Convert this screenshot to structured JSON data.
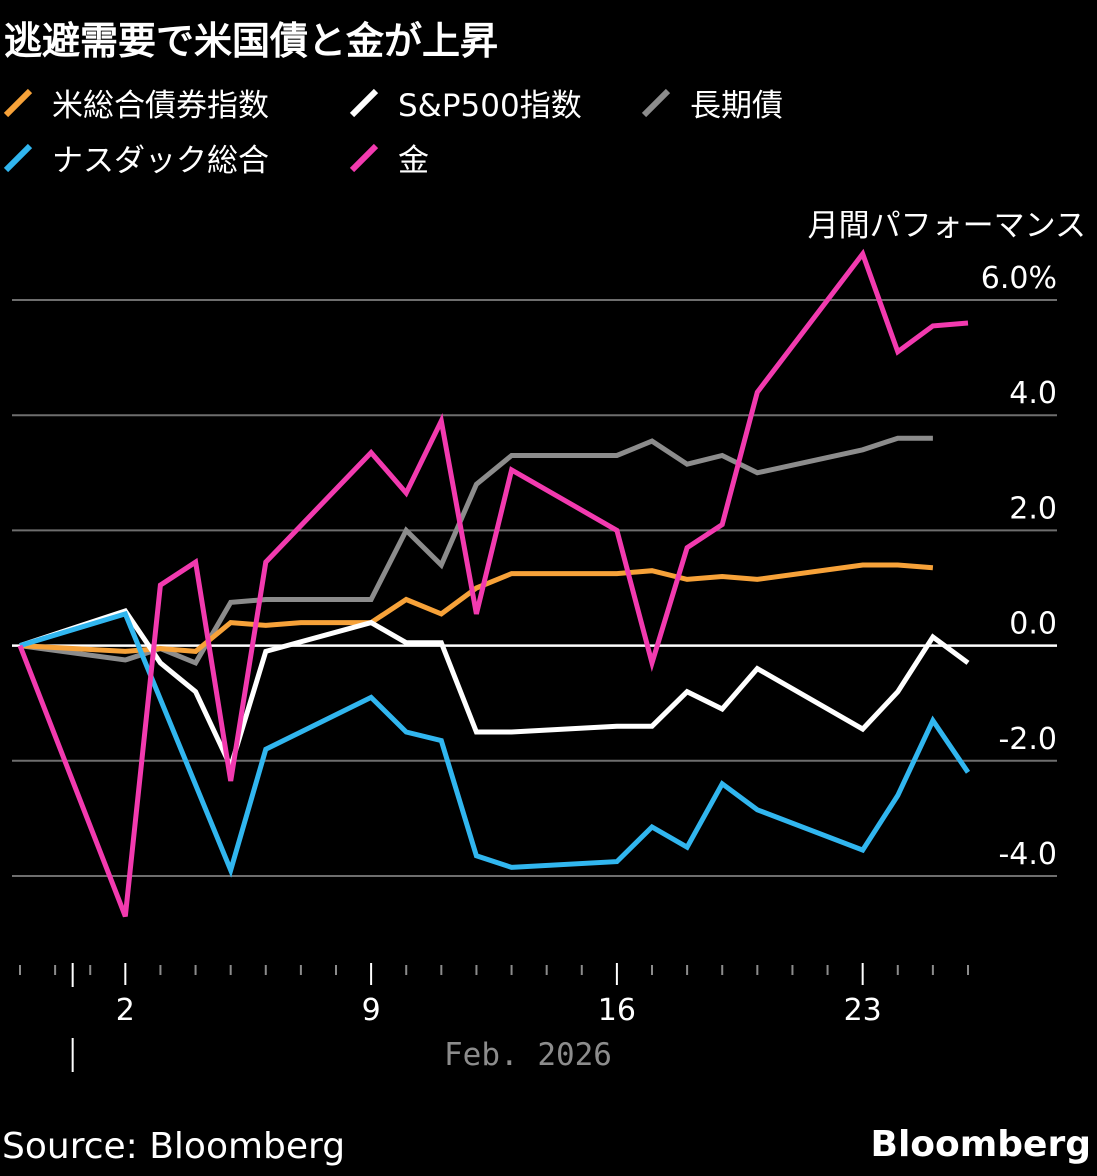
{
  "title": "逃避需要で米国債と金が上昇",
  "legend": [
    {
      "label": "米総合債券指数",
      "color": "#f7a239"
    },
    {
      "label": "S&P500指数",
      "color": "#ffffff"
    },
    {
      "label": "長期債",
      "color": "#8c8c8c"
    },
    {
      "label": "ナスダック総合",
      "color": "#31b6ef"
    },
    {
      "label": "金",
      "color": "#f23aaf"
    }
  ],
  "source": "Source: Bloomberg",
  "brand": "Bloomberg",
  "chart_data": {
    "type": "line",
    "ylabel": "月間パフォーマンス",
    "y_ticks": [
      "6.0%",
      "4.0",
      "2.0",
      "0.0",
      "-2.0",
      "-4.0"
    ],
    "y_tick_values": [
      6,
      4,
      2,
      0,
      -2,
      -4
    ],
    "ylim": [
      -5.5,
      6.5
    ],
    "x_day_range": [
      30,
      58
    ],
    "x_ticks": [
      {
        "label": "2",
        "day": 33
      },
      {
        "label": "9",
        "day": 40
      },
      {
        "label": "16",
        "day": 47
      },
      {
        "label": "23",
        "day": 54
      }
    ],
    "x_month_label": "Feb. 2026",
    "zero_line": true,
    "grid": true,
    "series": [
      {
        "name": "米総合債券指数",
        "color": "#f7a239",
        "x": [
          30,
          33,
          34,
          35,
          36,
          37,
          38,
          40,
          41,
          42,
          43,
          44,
          47,
          48,
          49,
          50,
          51,
          54,
          55,
          56
        ],
        "y": [
          0.0,
          -0.1,
          -0.05,
          -0.1,
          0.4,
          0.35,
          0.4,
          0.4,
          0.8,
          0.55,
          1.0,
          1.25,
          1.25,
          1.3,
          1.15,
          1.2,
          1.15,
          1.4,
          1.4,
          1.35
        ]
      },
      {
        "name": "S&P500指数",
        "color": "#ffffff",
        "x": [
          30,
          33,
          34,
          35,
          36,
          37,
          40,
          41,
          42,
          43,
          44,
          47,
          48,
          49,
          50,
          51,
          54,
          55,
          56,
          57
        ],
        "y": [
          0.0,
          0.6,
          -0.3,
          -0.8,
          -2.1,
          -0.1,
          0.4,
          0.05,
          0.05,
          -1.5,
          -1.5,
          -1.4,
          -1.4,
          -0.8,
          -1.1,
          -0.4,
          -1.45,
          -0.8,
          0.15,
          -0.3
        ]
      },
      {
        "name": "長期債",
        "color": "#8c8c8c",
        "x": [
          30,
          33,
          34,
          35,
          36,
          37,
          40,
          41,
          42,
          43,
          44,
          47,
          48,
          49,
          50,
          51,
          54,
          55,
          56
        ],
        "y": [
          0.0,
          -0.25,
          -0.05,
          -0.3,
          0.75,
          0.8,
          0.8,
          2.0,
          1.4,
          2.8,
          3.3,
          3.3,
          3.55,
          3.15,
          3.3,
          3.0,
          3.4,
          3.6,
          3.6
        ]
      },
      {
        "name": "ナスダック総合",
        "color": "#31b6ef",
        "x": [
          30,
          33,
          36,
          37,
          40,
          41,
          42,
          43,
          44,
          47,
          48,
          49,
          50,
          51,
          54,
          55,
          56,
          57
        ],
        "y": [
          0.0,
          0.55,
          -3.9,
          -1.8,
          -0.9,
          -1.5,
          -1.65,
          -3.65,
          -3.85,
          -3.75,
          -3.15,
          -3.5,
          -2.4,
          -2.85,
          -3.55,
          -2.6,
          -1.3,
          -2.2
        ]
      },
      {
        "name": "金",
        "color": "#f23aaf",
        "x": [
          30,
          33,
          34,
          35,
          36,
          37,
          40,
          41,
          42,
          43,
          44,
          47,
          48,
          49,
          50,
          51,
          54,
          55,
          56,
          57
        ],
        "y": [
          0.0,
          -4.7,
          1.05,
          1.45,
          -2.35,
          1.45,
          3.35,
          2.65,
          3.9,
          0.55,
          3.05,
          2.0,
          -0.3,
          1.7,
          2.1,
          4.4,
          6.8,
          5.1,
          5.55,
          5.6
        ]
      }
    ]
  }
}
